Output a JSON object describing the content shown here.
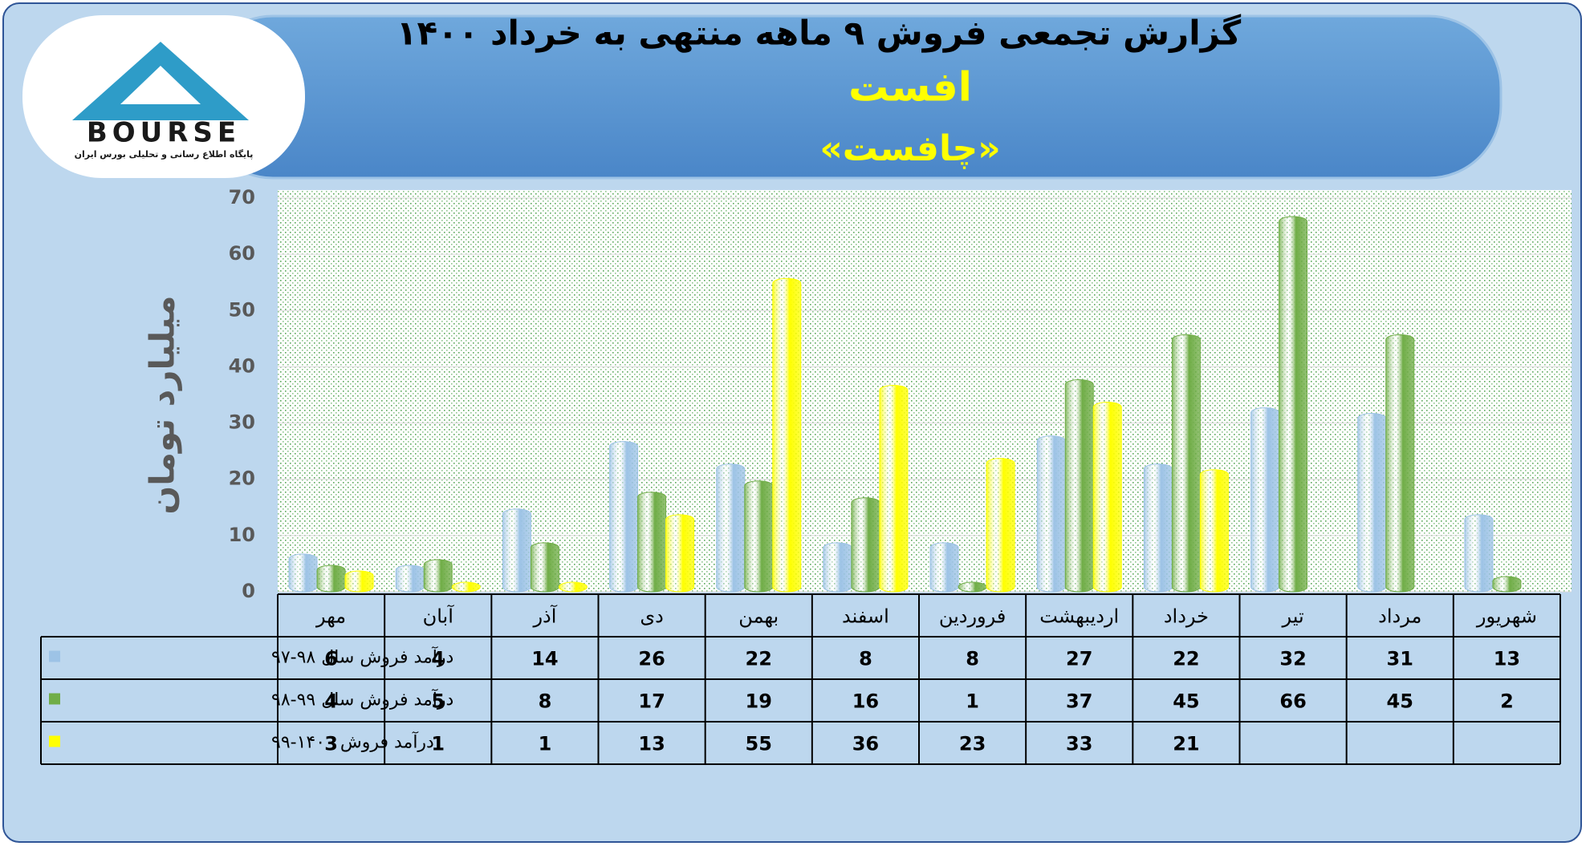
{
  "logo": {
    "name": "BOURSE",
    "tagline": "پایگاه اطلاع رسانی و تحلیلی بورس ایران"
  },
  "chart_data": {
    "type": "bar",
    "title": "گزارش تجمعی فروش ۹ ماهه منتهی به خرداد ۱۴۰۰",
    "subtitle": "افست",
    "symbol": "«چافست»",
    "ylabel": "میلیارد تومان",
    "categories": [
      "مهر",
      "آبان",
      "آذر",
      "دی",
      "بهمن",
      "اسفند",
      "فروردین",
      "اردیبهشت",
      "خرداد",
      "تیر",
      "مرداد",
      "شهریور"
    ],
    "series": [
      {
        "name": "درآمد فروش سال ۹۸-۹۷",
        "color": "#9dc3e6",
        "values": [
          6,
          4,
          14,
          26,
          22,
          8,
          8,
          27,
          22,
          32,
          31,
          13
        ]
      },
      {
        "name": "درآمد فروش سال ۹۹-۹۸",
        "color": "#70ad47",
        "values": [
          4,
          5,
          8,
          17,
          19,
          16,
          1,
          37,
          45,
          66,
          45,
          2
        ]
      },
      {
        "name": "درآمد فروش ۱۴۰۰-۹۹",
        "color": "#ffff00",
        "values": [
          3,
          1,
          1,
          13,
          55,
          36,
          23,
          33,
          21,
          null,
          null,
          null
        ]
      }
    ],
    "ylim": [
      0,
      70
    ],
    "yticks": [
      0,
      10,
      20,
      30,
      40,
      50,
      60,
      70
    ],
    "grid": true,
    "data_table": true
  }
}
